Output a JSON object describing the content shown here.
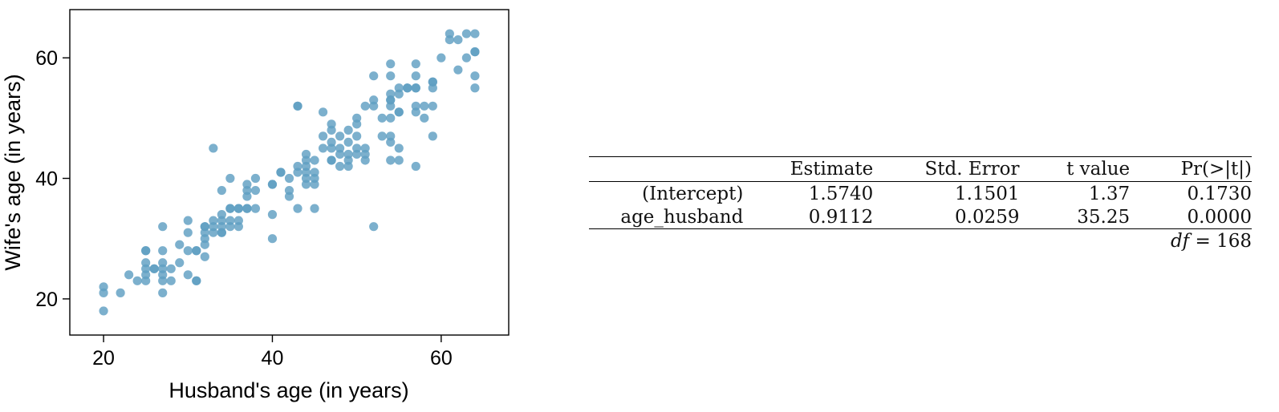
{
  "chart_data": {
    "type": "scatter",
    "title": "",
    "xlabel": "Husband's age (in years)",
    "ylabel": "Wife's age (in years)",
    "xlim": [
      16,
      68
    ],
    "ylim": [
      14,
      68
    ],
    "xticks": [
      20,
      40,
      60
    ],
    "yticks": [
      20,
      40,
      60
    ],
    "grid": false,
    "legend": "none",
    "marker_color": "#5f9fc2",
    "points": [
      [
        20,
        22
      ],
      [
        20,
        21
      ],
      [
        20,
        18
      ],
      [
        22,
        21
      ],
      [
        23,
        24
      ],
      [
        24,
        23
      ],
      [
        25,
        23
      ],
      [
        25,
        24
      ],
      [
        25,
        25
      ],
      [
        25,
        26
      ],
      [
        25,
        28
      ],
      [
        25,
        28
      ],
      [
        26,
        25
      ],
      [
        26,
        25
      ],
      [
        27,
        21
      ],
      [
        27,
        23
      ],
      [
        27,
        24
      ],
      [
        27,
        25
      ],
      [
        27,
        26
      ],
      [
        27,
        28
      ],
      [
        27,
        32
      ],
      [
        28,
        23
      ],
      [
        28,
        25
      ],
      [
        29,
        26
      ],
      [
        29,
        29
      ],
      [
        30,
        24
      ],
      [
        30,
        28
      ],
      [
        30,
        31
      ],
      [
        30,
        33
      ],
      [
        31,
        23
      ],
      [
        31,
        23
      ],
      [
        31,
        28
      ],
      [
        31,
        28
      ],
      [
        32,
        27
      ],
      [
        32,
        29
      ],
      [
        32,
        30
      ],
      [
        32,
        31
      ],
      [
        32,
        32
      ],
      [
        32,
        32
      ],
      [
        33,
        31
      ],
      [
        33,
        32
      ],
      [
        33,
        33
      ],
      [
        33,
        45
      ],
      [
        34,
        31
      ],
      [
        34,
        31
      ],
      [
        34,
        32
      ],
      [
        34,
        33
      ],
      [
        34,
        34
      ],
      [
        34,
        38
      ],
      [
        35,
        32
      ],
      [
        35,
        33
      ],
      [
        35,
        35
      ],
      [
        35,
        35
      ],
      [
        35,
        40
      ],
      [
        36,
        32
      ],
      [
        36,
        33
      ],
      [
        36,
        35
      ],
      [
        36,
        35
      ],
      [
        37,
        35
      ],
      [
        37,
        35
      ],
      [
        37,
        37
      ],
      [
        37,
        38
      ],
      [
        37,
        39
      ],
      [
        38,
        35
      ],
      [
        38,
        38
      ],
      [
        38,
        40
      ],
      [
        40,
        30
      ],
      [
        40,
        34
      ],
      [
        40,
        39
      ],
      [
        40,
        39
      ],
      [
        41,
        41
      ],
      [
        41,
        41
      ],
      [
        42,
        37
      ],
      [
        42,
        38
      ],
      [
        42,
        40
      ],
      [
        43,
        35
      ],
      [
        43,
        41
      ],
      [
        43,
        42
      ],
      [
        43,
        52
      ],
      [
        43,
        52
      ],
      [
        44,
        39
      ],
      [
        44,
        40
      ],
      [
        44,
        41
      ],
      [
        44,
        42
      ],
      [
        44,
        43
      ],
      [
        44,
        44
      ],
      [
        45,
        35
      ],
      [
        45,
        39
      ],
      [
        45,
        40
      ],
      [
        45,
        41
      ],
      [
        45,
        43
      ],
      [
        46,
        45
      ],
      [
        46,
        47
      ],
      [
        46,
        51
      ],
      [
        47,
        43
      ],
      [
        47,
        43
      ],
      [
        47,
        45
      ],
      [
        47,
        46
      ],
      [
        47,
        48
      ],
      [
        47,
        49
      ],
      [
        48,
        42
      ],
      [
        48,
        44
      ],
      [
        48,
        45
      ],
      [
        48,
        47
      ],
      [
        49,
        42
      ],
      [
        49,
        43
      ],
      [
        49,
        44
      ],
      [
        49,
        46
      ],
      [
        49,
        48
      ],
      [
        50,
        44
      ],
      [
        50,
        45
      ],
      [
        50,
        47
      ],
      [
        50,
        49
      ],
      [
        50,
        50
      ],
      [
        51,
        43
      ],
      [
        51,
        44
      ],
      [
        51,
        45
      ],
      [
        51,
        52
      ],
      [
        52,
        32
      ],
      [
        52,
        52
      ],
      [
        52,
        53
      ],
      [
        52,
        57
      ],
      [
        53,
        47
      ],
      [
        53,
        50
      ],
      [
        54,
        43
      ],
      [
        54,
        46
      ],
      [
        54,
        47
      ],
      [
        54,
        50
      ],
      [
        54,
        52
      ],
      [
        54,
        53
      ],
      [
        54,
        53
      ],
      [
        54,
        54
      ],
      [
        54,
        57
      ],
      [
        54,
        59
      ],
      [
        55,
        43
      ],
      [
        55,
        45
      ],
      [
        55,
        51
      ],
      [
        55,
        51
      ],
      [
        55,
        54
      ],
      [
        55,
        55
      ],
      [
        56,
        55
      ],
      [
        56,
        55
      ],
      [
        57,
        42
      ],
      [
        57,
        51
      ],
      [
        57,
        52
      ],
      [
        57,
        55
      ],
      [
        57,
        55
      ],
      [
        57,
        57
      ],
      [
        57,
        59
      ],
      [
        58,
        50
      ],
      [
        58,
        52
      ],
      [
        59,
        47
      ],
      [
        59,
        52
      ],
      [
        59,
        55
      ],
      [
        59,
        56
      ],
      [
        59,
        56
      ],
      [
        60,
        60
      ],
      [
        61,
        63
      ],
      [
        61,
        64
      ],
      [
        62,
        58
      ],
      [
        62,
        63
      ],
      [
        63,
        60
      ],
      [
        63,
        64
      ],
      [
        64,
        55
      ],
      [
        64,
        57
      ],
      [
        64,
        61
      ],
      [
        64,
        61
      ],
      [
        64,
        64
      ]
    ]
  },
  "regression_table": {
    "headers": [
      "",
      "Estimate",
      "Std. Error",
      "t value",
      "Pr(>|t|)"
    ],
    "rows": [
      [
        "(Intercept)",
        "1.5740",
        "1.1501",
        "1.37",
        "0.1730"
      ],
      [
        "age_husband",
        "0.9112",
        "0.0259",
        "35.25",
        "0.0000"
      ]
    ],
    "df_label": "df",
    "df_equals": " = ",
    "df_value": "168"
  }
}
